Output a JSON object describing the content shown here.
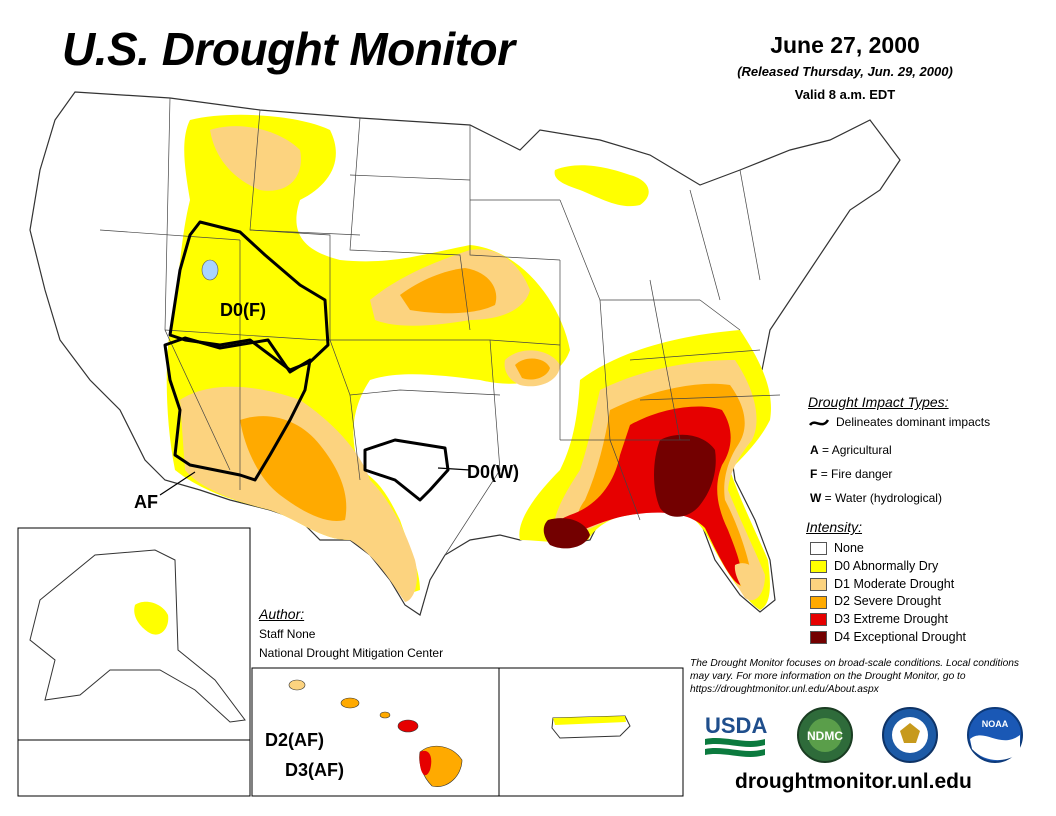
{
  "header": {
    "title": "U.S. Drought Monitor",
    "date": "June 27, 2000",
    "released": "(Released Thursday, Jun. 29, 2000)",
    "valid": "Valid 8 a.m. EDT"
  },
  "map_labels": {
    "d0f": "D0(F)",
    "af": "AF",
    "d0w": "D0(W)",
    "d2af": "D2(AF)",
    "d3af": "D3(AF)"
  },
  "impact_legend": {
    "title": "Drought Impact Types:",
    "delineates": "Delineates dominant impacts",
    "items": [
      {
        "code": "A",
        "label": "= Agricultural"
      },
      {
        "code": "F",
        "label": "= Fire danger"
      },
      {
        "code": "W",
        "label": "= Water (hydrological)"
      }
    ]
  },
  "intensity_legend": {
    "title": "Intensity:",
    "items": [
      {
        "label": "None",
        "color": "#ffffff"
      },
      {
        "label": "D0 Abnormally Dry",
        "color": "#ffff00"
      },
      {
        "label": "D1 Moderate Drought",
        "color": "#fcd37f"
      },
      {
        "label": "D2 Severe Drought",
        "color": "#ffaa00"
      },
      {
        "label": "D3 Extreme Drought",
        "color": "#e60000"
      },
      {
        "label": "D4 Exceptional Drought",
        "color": "#730000"
      }
    ]
  },
  "author": {
    "heading": "Author:",
    "name": "Staff None",
    "org": "National Drought Mitigation Center"
  },
  "note": "The Drought Monitor focuses on broad-scale conditions. Local conditions may vary. For more information on the Drought Monitor, go to https://droughtmonitor.unl.edu/About.aspx",
  "logos": {
    "usda": "USDA",
    "ndmc": "NDMC",
    "noaa": "NOAA"
  },
  "footer_url": "droughtmonitor.unl.edu"
}
